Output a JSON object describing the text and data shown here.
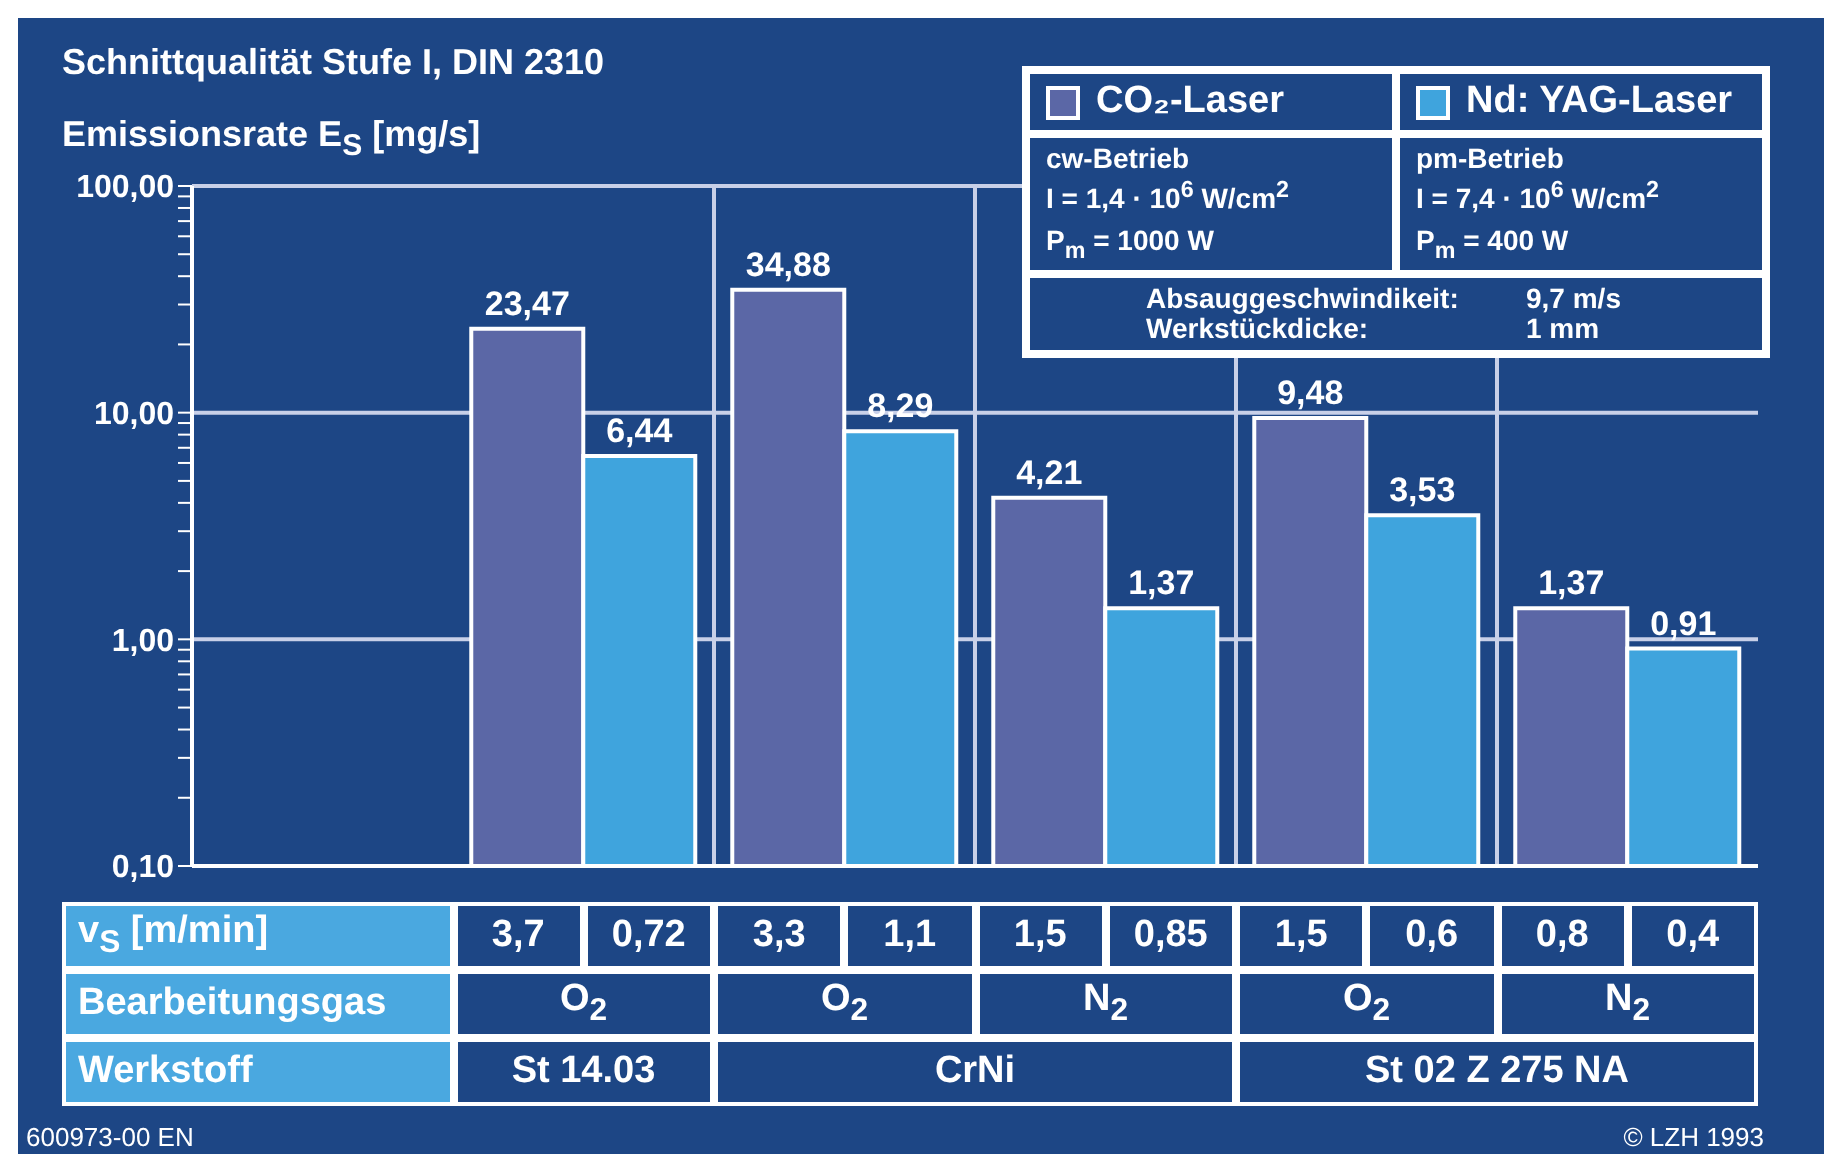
{
  "chart_data": {
    "type": "bar",
    "title": "Schnittqualität Stufe I, DIN 2310",
    "ylabel": "Emissionsrate E$_{S}$ [mg/s]",
    "categories": [
      null,
      null,
      null,
      null,
      null,
      null
    ],
    "series": [
      {
        "name": "CO₂-Laser",
        "color": "#5b67a6",
        "values": [
          null,
          23.47,
          34.88,
          4.21,
          9.48,
          1.37
        ],
        "value_labels": [
          null,
          "23,47",
          "34,88",
          "4,21",
          "9,48",
          "1,37"
        ]
      },
      {
        "name": "Nd: YAG-Laser",
        "color": "#3fa4dd",
        "values": [
          null,
          6.44,
          8.29,
          1.37,
          3.53,
          0.91
        ],
        "value_labels": [
          null,
          "6,44",
          "8,29",
          "1,37",
          "3,53",
          "0,91"
        ]
      }
    ],
    "log": true,
    "ylim": [
      0.1,
      100
    ],
    "yticks": [
      {
        "value": 0.1,
        "label": "0,10"
      },
      {
        "value": 0.2,
        "label": null
      },
      {
        "value": 0.3,
        "label": null
      },
      {
        "value": 0.4,
        "label": null
      },
      {
        "value": 0.5,
        "label": null
      },
      {
        "value": 0.6,
        "label": null
      },
      {
        "value": 0.7,
        "label": null
      },
      {
        "value": 0.8,
        "label": null
      },
      {
        "value": 0.9,
        "label": null
      },
      {
        "value": 1,
        "label": "1,00"
      },
      {
        "value": 2,
        "label": null
      },
      {
        "value": 3,
        "label": null
      },
      {
        "value": 4,
        "label": null
      },
      {
        "value": 5,
        "label": null
      },
      {
        "value": 6,
        "label": null
      },
      {
        "value": 7,
        "label": null
      },
      {
        "value": 8,
        "label": null
      },
      {
        "value": 9,
        "label": null
      },
      {
        "value": 10,
        "label": "10,00"
      },
      {
        "value": 20,
        "label": null
      },
      {
        "value": 30,
        "label": null
      },
      {
        "value": 40,
        "label": null
      },
      {
        "value": 50,
        "label": null
      },
      {
        "value": 60,
        "label": null
      },
      {
        "value": 70,
        "label": null
      },
      {
        "value": 80,
        "label": null
      },
      {
        "value": 90,
        "label": null
      },
      {
        "value": 100,
        "label": "100,00"
      }
    ],
    "grid": true,
    "legend": "top right",
    "annotations": [
      "v$_{S}$ [m/min]",
      "3,7",
      "0,72",
      "3,3",
      "1,1",
      "1,5",
      "0,85",
      "1,5",
      "0,6",
      "0,8",
      "0,4",
      "Bearbeitungsgas",
      "O$_{2}$",
      "O$_{2}$",
      "N$_{2}$",
      "O$_{2}$",
      "N$_{2}$",
      "Werkstoff",
      "St 14.03",
      "CrNi",
      "St 02 Z 275 NA",
      "cw-Betrieb",
      "I = 1,4 · 10$^{6}$ W/cm$^{2}$",
      "P$_{m}$ = 1000 W",
      "pm-Betrieb",
      "I = 7,4 · 10$^{6}$ W/cm$^{2}$",
      "P$_{m}$ = 400 W",
      "Absauggeschwindikeit:",
      "9,7 m/s",
      "Werkstückdicke:",
      "1 mm",
      "600973-00 EN",
      "© LZH 1993"
    ]
  }
}
